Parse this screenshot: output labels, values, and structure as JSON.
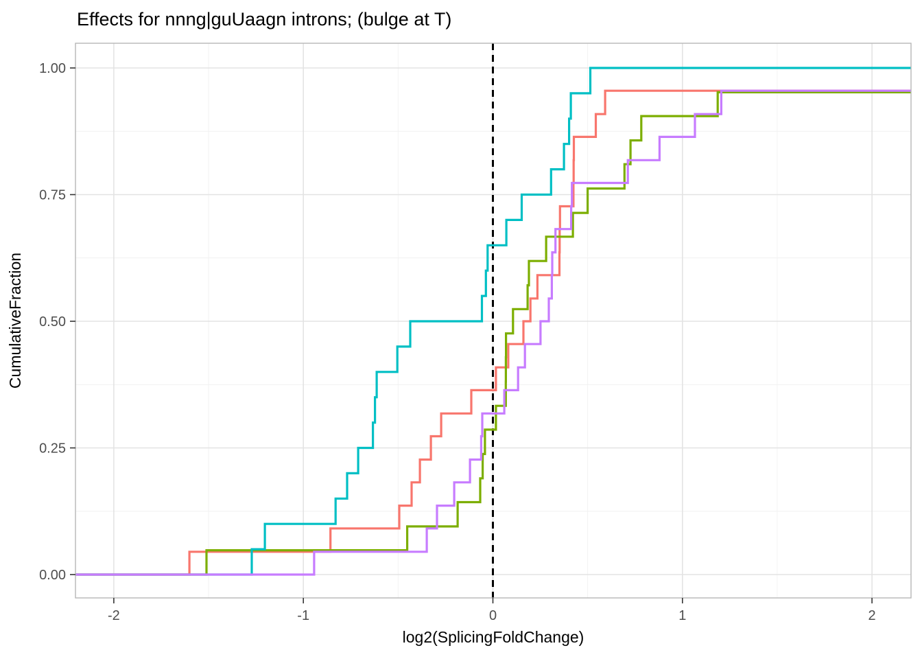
{
  "title": "Effects for nnng|guUaagn introns; (bulge at T)",
  "x_axis": {
    "label": "log2(SplicingFoldChange)",
    "ticks": [
      -2,
      -1,
      0,
      1,
      2
    ],
    "tick_labels": [
      "-2",
      "-1",
      "0",
      "1",
      "2"
    ],
    "minor_ticks": [
      -1.5,
      -0.5,
      0.5,
      1.5
    ],
    "range": [
      -2.202,
      2.206
    ]
  },
  "y_axis": {
    "label": "CumulativeFraction",
    "ticks": [
      0,
      0.25,
      0.5,
      0.75,
      1.0
    ],
    "tick_labels": [
      "0.00",
      "0.25",
      "0.50",
      "0.75",
      "1.00"
    ],
    "minor_ticks": [
      0.125,
      0.375,
      0.625,
      0.875
    ],
    "range": [
      -0.046,
      1.05
    ]
  },
  "reference_line": {
    "x": 0,
    "color": "#000000",
    "dash": [
      10,
      7
    ],
    "width": 3
  },
  "style_colors": {
    "grid_major": "#e3e3e3",
    "grid_minor": "#f1f1f1",
    "panel_border": "#b7b7b7",
    "tick_mark": "#333333",
    "tick_label": "#4d4d4d",
    "title_text": "#000000"
  },
  "chart_data": {
    "type": "line",
    "subtype": "ecdf-step",
    "grid": true,
    "legend": "none",
    "baseline_value": 0,
    "plateau_to_right_edge": true,
    "series": [
      {
        "name": "salmon",
        "color": "#F8766D",
        "points": [
          [
            -1.601,
            0.045
          ],
          [
            -0.857,
            0.091
          ],
          [
            -0.494,
            0.136
          ],
          [
            -0.429,
            0.182
          ],
          [
            -0.385,
            0.227
          ],
          [
            -0.327,
            0.273
          ],
          [
            -0.273,
            0.318
          ],
          [
            -0.114,
            0.364
          ],
          [
            0.016,
            0.409
          ],
          [
            0.081,
            0.455
          ],
          [
            0.161,
            0.5
          ],
          [
            0.198,
            0.545
          ],
          [
            0.235,
            0.591
          ],
          [
            0.351,
            0.636
          ],
          [
            0.352,
            0.682
          ],
          [
            0.354,
            0.727
          ],
          [
            0.425,
            0.773
          ],
          [
            0.426,
            0.818
          ],
          [
            0.427,
            0.864
          ],
          [
            0.543,
            0.909
          ],
          [
            0.592,
            0.955
          ]
        ]
      },
      {
        "name": "olive",
        "color": "#7CAE00",
        "points": [
          [
            -1.511,
            0.048
          ],
          [
            -0.452,
            0.095
          ],
          [
            -0.186,
            0.143
          ],
          [
            -0.067,
            0.19
          ],
          [
            -0.054,
            0.238
          ],
          [
            -0.042,
            0.286
          ],
          [
            0.016,
            0.333
          ],
          [
            0.068,
            0.381
          ],
          [
            0.0685,
            0.429
          ],
          [
            0.069,
            0.476
          ],
          [
            0.106,
            0.524
          ],
          [
            0.183,
            0.571
          ],
          [
            0.19,
            0.619
          ],
          [
            0.281,
            0.667
          ],
          [
            0.422,
            0.714
          ],
          [
            0.5,
            0.762
          ],
          [
            0.694,
            0.81
          ],
          [
            0.726,
            0.857
          ],
          [
            0.783,
            0.905
          ],
          [
            1.186,
            0.952
          ]
        ]
      },
      {
        "name": "teal",
        "color": "#00BFC4",
        "points": [
          [
            -1.272,
            0.05
          ],
          [
            -1.203,
            0.1
          ],
          [
            -0.83,
            0.15
          ],
          [
            -0.769,
            0.2
          ],
          [
            -0.711,
            0.25
          ],
          [
            -0.633,
            0.3
          ],
          [
            -0.622,
            0.35
          ],
          [
            -0.613,
            0.4
          ],
          [
            -0.504,
            0.45
          ],
          [
            -0.436,
            0.5
          ],
          [
            -0.058,
            0.55
          ],
          [
            -0.037,
            0.6
          ],
          [
            -0.028,
            0.65
          ],
          [
            0.071,
            0.7
          ],
          [
            0.152,
            0.75
          ],
          [
            0.307,
            0.8
          ],
          [
            0.375,
            0.85
          ],
          [
            0.402,
            0.9
          ],
          [
            0.411,
            0.95
          ],
          [
            0.514,
            1.0
          ]
        ]
      },
      {
        "name": "purple",
        "color": "#C77CFF",
        "points": [
          [
            -0.943,
            0.045
          ],
          [
            -0.349,
            0.091
          ],
          [
            -0.295,
            0.136
          ],
          [
            -0.204,
            0.182
          ],
          [
            -0.121,
            0.227
          ],
          [
            -0.062,
            0.273
          ],
          [
            -0.056,
            0.318
          ],
          [
            0.06,
            0.364
          ],
          [
            0.133,
            0.409
          ],
          [
            0.169,
            0.455
          ],
          [
            0.251,
            0.5
          ],
          [
            0.295,
            0.545
          ],
          [
            0.311,
            0.591
          ],
          [
            0.313,
            0.636
          ],
          [
            0.33,
            0.682
          ],
          [
            0.413,
            0.727
          ],
          [
            0.417,
            0.773
          ],
          [
            0.712,
            0.818
          ],
          [
            0.879,
            0.864
          ],
          [
            1.066,
            0.909
          ],
          [
            1.205,
            0.955
          ]
        ]
      }
    ]
  }
}
